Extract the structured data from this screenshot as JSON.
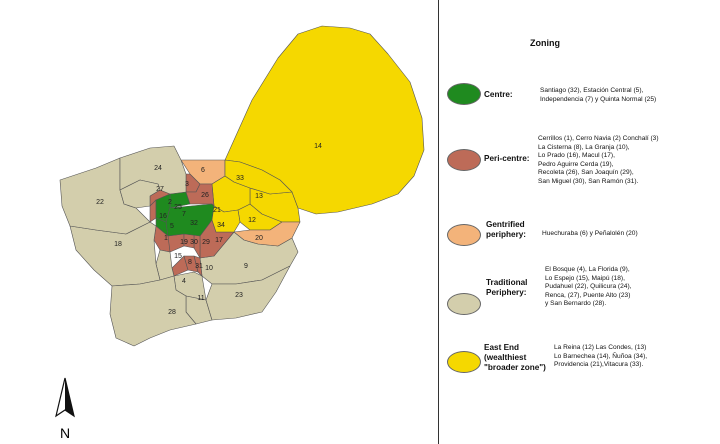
{
  "legend": {
    "title": "Zoning",
    "categories": [
      {
        "key": "centre",
        "label": "Centre:",
        "color": "#1f8a1f",
        "members": "Santiago (32), Estación Central (5),\nIndependencia (7) y Quinta Normal (25)"
      },
      {
        "key": "pericentre",
        "label": "Peri-centre:",
        "color": "#bd6b58",
        "members": "Cerrillos (1), Cerro Navia (2) Conchalí (3)\nLa Cisterna (8), La Granja (10),\nLo Prado (16), Macul (17),\nPedro Aguirre Cerda (19),\nRecoleta (26), San Joaquín (29),\nSan Miguel (30), San Ramón (31)."
      },
      {
        "key": "gentrified",
        "label": "Gentrified\nperiphery:",
        "color": "#f3b37a",
        "members": "Huechuraba (6) y Peñalolén (20)"
      },
      {
        "key": "traditional",
        "label": "Traditional\nPeriphery:",
        "color": "#d3ceac",
        "members": "El Bosque (4), La Florida (9),\nLo Espejo (15), Maipú (18),\nPudahuel (22), Quilicura (24),\nRenca, (27), Puente Alto (23)\ny San Bernardo (28)."
      },
      {
        "key": "eastend",
        "label": "East End\n(wealthiest\n\"broader zone\")",
        "color": "#f5d800",
        "members": "La Reina (12) Las Condes, (13)\nLo Barnechea (14), Ñuñoa (34),\nProvidencia (21),Vitacura (33)."
      }
    ]
  },
  "districts": [
    {
      "n": "1",
      "zone": "pericentre"
    },
    {
      "n": "2",
      "zone": "pericentre"
    },
    {
      "n": "3",
      "zone": "pericentre"
    },
    {
      "n": "4",
      "zone": "traditional"
    },
    {
      "n": "5",
      "zone": "centre"
    },
    {
      "n": "6",
      "zone": "gentrified"
    },
    {
      "n": "7",
      "zone": "centre"
    },
    {
      "n": "8",
      "zone": "pericentre"
    },
    {
      "n": "9",
      "zone": "traditional"
    },
    {
      "n": "10",
      "zone": "pericentre"
    },
    {
      "n": "11",
      "zone": "traditional"
    },
    {
      "n": "12",
      "zone": "eastend"
    },
    {
      "n": "13",
      "zone": "eastend"
    },
    {
      "n": "14",
      "zone": "eastend"
    },
    {
      "n": "15",
      "zone": "traditional"
    },
    {
      "n": "16",
      "zone": "pericentre"
    },
    {
      "n": "17",
      "zone": "pericentre"
    },
    {
      "n": "18",
      "zone": "traditional"
    },
    {
      "n": "19",
      "zone": "pericentre"
    },
    {
      "n": "20",
      "zone": "gentrified"
    },
    {
      "n": "21",
      "zone": "eastend"
    },
    {
      "n": "22",
      "zone": "traditional"
    },
    {
      "n": "23",
      "zone": "traditional"
    },
    {
      "n": "24",
      "zone": "traditional"
    },
    {
      "n": "25",
      "zone": "centre"
    },
    {
      "n": "26",
      "zone": "pericentre"
    },
    {
      "n": "27",
      "zone": "traditional"
    },
    {
      "n": "28",
      "zone": "traditional"
    },
    {
      "n": "29",
      "zone": "pericentre"
    },
    {
      "n": "30",
      "zone": "pericentre"
    },
    {
      "n": "31",
      "zone": "pericentre"
    },
    {
      "n": "32",
      "zone": "centre"
    },
    {
      "n": "33",
      "zone": "eastend"
    },
    {
      "n": "34",
      "zone": "eastend"
    }
  ],
  "north_arrow": {
    "label": "N"
  },
  "colors": {
    "border": "#555555",
    "divider": "#333333"
  }
}
